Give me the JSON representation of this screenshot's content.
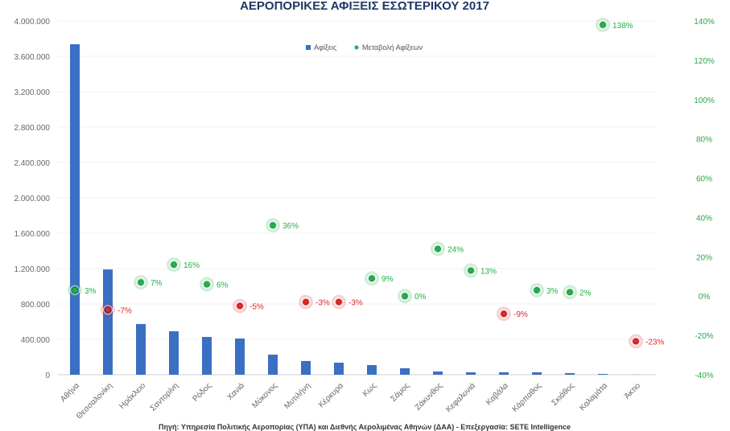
{
  "chart_data": {
    "type": "bar+scatter",
    "title": "ΑΕΡΟΠΟΡΙΚΕΣ ΑΦΙΞΕΙΣ ΕΣΩΤΕΡΙΚΟΥ 2017",
    "source": "Πηγή: Υπηρεσία Πολιτικής Αεροπορίας (ΥΠΑ) και Διεθνής Αερολιμένας Αθηνών (ΔΑΑ) - Επεξεργασία: SETE Intelligence",
    "categories": [
      "Αθήνα",
      "Θεσσαλονίκη",
      "Ηράκλειο",
      "Σαντορίνη",
      "Ρόδος",
      "Χανιά",
      "Μύκονος",
      "Μυτιλήνη",
      "Κέρκυρα",
      "Κως",
      "Σάμος",
      "Ζάκυνθος",
      "Κεφαλονιά",
      "Καβάλα",
      "Κάρπαθος",
      "Σκιάθος",
      "Καλαμάτα",
      "Άκτιο"
    ],
    "series": [
      {
        "name": "Αφίξεις",
        "axis": "left",
        "color": "#3a6fc4",
        "values": [
          3736000,
          1190000,
          573000,
          491000,
          427000,
          409000,
          227000,
          155000,
          136000,
          109000,
          73000,
          36000,
          27000,
          27000,
          27000,
          18000,
          9000,
          1000
        ]
      },
      {
        "name": "Μεταβολή Αφίξεων",
        "axis": "right",
        "unit": "%",
        "values": [
          3,
          -7,
          7,
          16,
          6,
          -5,
          36,
          -3,
          -3,
          9,
          0,
          24,
          13,
          -9,
          3,
          2,
          138,
          -23
        ],
        "labels": [
          "3%",
          "-7%",
          "7%",
          "16%",
          "6%",
          "-5%",
          "36%",
          "-3%",
          "-3%",
          "9%",
          "0%",
          "24%",
          "13%",
          "-9%",
          "3%",
          "2%",
          "138%",
          "-23%"
        ]
      }
    ],
    "left_axis": {
      "ylim": [
        0,
        4000000
      ],
      "ticks": [
        "0",
        "400.000",
        "800.000",
        "1.200.000",
        "1.600.000",
        "2.000.000",
        "2.400.000",
        "2.800.000",
        "3.200.000",
        "3.600.000",
        "4.000.000"
      ]
    },
    "right_axis": {
      "ylim": [
        -40,
        140
      ],
      "ticks": [
        "-40%",
        "-20%",
        "0%",
        "20%",
        "40%",
        "60%",
        "80%",
        "100%",
        "120%",
        "140%"
      ]
    },
    "legend_position": "top-center",
    "colors": {
      "positive": "#22b04a",
      "negative": "#e02a2a",
      "right_axis": "#2aa54a"
    }
  }
}
